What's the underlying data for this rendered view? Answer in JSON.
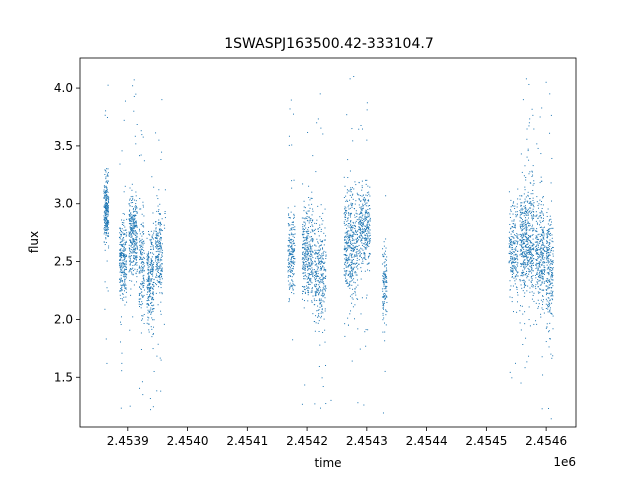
{
  "chart_data": {
    "type": "scatter",
    "title": "1SWASPJ163500.42-333104.7",
    "xlabel": "time",
    "ylabel": "flux",
    "x_offset_label": "1e6",
    "xlim": [
      2.45382,
      2.45465
    ],
    "ylim": [
      1.07,
      4.26
    ],
    "x_ticks": [
      2.4539,
      2.454,
      2.4541,
      2.4542,
      2.4543,
      2.4544,
      2.4545,
      2.4546
    ],
    "x_tick_labels": [
      "2.4539",
      "2.4540",
      "2.4541",
      "2.4542",
      "2.4543",
      "2.4544",
      "2.4545",
      "2.4546"
    ],
    "y_ticks": [
      1.5,
      2.0,
      2.5,
      3.0,
      3.5,
      4.0
    ],
    "y_tick_labels": [
      "1.5",
      "2.0",
      "2.5",
      "3.0",
      "3.5",
      "4.0"
    ],
    "grid": false,
    "marker_color": "#1f77b4",
    "series": [
      {
        "clusters": [
          {
            "x_range": [
              2.45386,
              2.453868
            ],
            "y_center": 2.95,
            "y_spread": 0.16,
            "count": 260
          },
          {
            "x_range": [
              2.453886,
              2.453898
            ],
            "y_center": 2.52,
            "y_spread": 0.17,
            "count": 260
          },
          {
            "x_range": [
              2.453902,
              2.453916
            ],
            "y_center": 2.72,
            "y_spread": 0.18,
            "count": 320
          },
          {
            "x_range": [
              2.453919,
              2.453928
            ],
            "y_center": 2.45,
            "y_spread": 0.24,
            "count": 160
          },
          {
            "x_range": [
              2.453932,
              2.453944
            ],
            "y_center": 2.35,
            "y_spread": 0.22,
            "count": 260
          },
          {
            "x_range": [
              2.453946,
              2.453958
            ],
            "y_center": 2.55,
            "y_spread": 0.19,
            "count": 220
          },
          {
            "x_range": [
              2.453961,
              2.453963
            ],
            "y_center": 2.85,
            "y_spread": 0.16,
            "count": 8
          },
          {
            "x_range": [
              2.454168,
              2.45418
            ],
            "y_center": 2.56,
            "y_spread": 0.17,
            "count": 200
          },
          {
            "x_range": [
              2.454192,
              2.45421
            ],
            "y_center": 2.58,
            "y_spread": 0.2,
            "count": 340
          },
          {
            "x_range": [
              2.454212,
              2.454232
            ],
            "y_center": 2.4,
            "y_spread": 0.22,
            "count": 300
          },
          {
            "x_range": [
              2.454262,
              2.454285
            ],
            "y_center": 2.65,
            "y_spread": 0.24,
            "count": 420
          },
          {
            "x_range": [
              2.454286,
              2.454306
            ],
            "y_center": 2.8,
            "y_spread": 0.17,
            "count": 320
          },
          {
            "x_range": [
              2.454326,
              2.454334
            ],
            "y_center": 2.3,
            "y_spread": 0.17,
            "count": 120
          },
          {
            "x_range": [
              2.454538,
              2.454553
            ],
            "y_center": 2.6,
            "y_spread": 0.2,
            "count": 220
          },
          {
            "x_range": [
              2.454556,
              2.45458
            ],
            "y_center": 2.68,
            "y_spread": 0.25,
            "count": 520
          },
          {
            "x_range": [
              2.454582,
              2.454598
            ],
            "y_center": 2.58,
            "y_spread": 0.23,
            "count": 300
          },
          {
            "x_range": [
              2.4546,
              2.454612
            ],
            "y_center": 2.45,
            "y_spread": 0.25,
            "count": 240
          }
        ],
        "outliers": [
          [
            2.453904,
            1.25
          ],
          [
            2.453908,
            4.02
          ],
          [
            2.45391,
            3.8
          ],
          [
            2.453925,
            1.35
          ],
          [
            2.453938,
            1.22
          ],
          [
            2.453944,
            1.55
          ],
          [
            2.453955,
            1.38
          ],
          [
            2.453957,
            3.9
          ],
          [
            2.453952,
            3.55
          ],
          [
            2.45389,
            1.62
          ],
          [
            2.454213,
            1.27
          ],
          [
            2.454222,
            3.95
          ],
          [
            2.454227,
            1.42
          ],
          [
            2.454216,
            3.7
          ],
          [
            2.45424,
            1.3
          ],
          [
            2.454272,
            4.08
          ],
          [
            2.454278,
            4.1
          ],
          [
            2.454275,
            3.65
          ],
          [
            2.454285,
            1.28
          ],
          [
            2.454295,
            1.26
          ],
          [
            2.4543,
            3.55
          ],
          [
            2.454562,
            3.9
          ],
          [
            2.454567,
            4.08
          ],
          [
            2.454572,
            3.7
          ],
          [
            2.45459,
            3.75
          ],
          [
            2.4546,
            4.05
          ],
          [
            2.454604,
            1.23
          ],
          [
            2.454606,
            3.95
          ],
          [
            2.454558,
            1.45
          ],
          [
            2.454608,
            1.7
          ]
        ]
      }
    ]
  }
}
